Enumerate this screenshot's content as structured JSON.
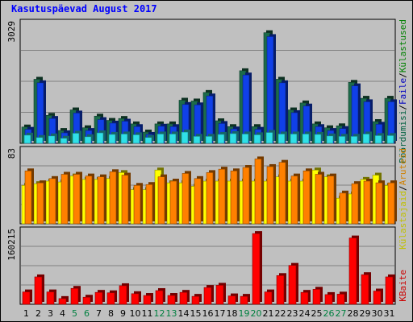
{
  "page": {
    "title": "Kasutuspäevad August 2017"
  },
  "legend": {
    "top_right": [
      {
        "label": "Pöördumisi",
        "color": "#006040"
      },
      {
        "label": "/",
        "color": "#000000"
      },
      {
        "label": "Faile",
        "color": "#0000c0"
      },
      {
        "label": "/",
        "color": "#000000"
      },
      {
        "label": "Külastused",
        "color": "#008000"
      }
    ],
    "middle_right": [
      {
        "label": "Külastajaid",
        "color": "#c0c000"
      },
      {
        "label": "/",
        "color": "#000000"
      },
      {
        "label": "Aruteid",
        "color": "#d08000"
      }
    ],
    "bottom_right": [
      {
        "label": "KBaite",
        "color": "#cc0000"
      }
    ]
  },
  "chart_data": [
    {
      "type": "bar",
      "panel": "top",
      "ymax_label": "3029",
      "ylim": [
        0,
        3029
      ],
      "categories": [
        "1",
        "2",
        "3",
        "4",
        "5",
        "6",
        "7",
        "8",
        "9",
        "10",
        "11",
        "12",
        "13",
        "14",
        "15",
        "16",
        "17",
        "18",
        "19",
        "20",
        "21",
        "22",
        "23",
        "24",
        "25",
        "26",
        "27",
        "28",
        "29",
        "30",
        "31"
      ],
      "weekend_days": [
        "5",
        "6",
        "12",
        "13",
        "19",
        "20",
        "26",
        "27"
      ],
      "series": [
        {
          "name": "Pöördumisi",
          "color": "#1c6b4a",
          "values": [
            420,
            1650,
            720,
            330,
            860,
            400,
            700,
            590,
            640,
            500,
            290,
            500,
            500,
            1110,
            1090,
            1310,
            580,
            430,
            1870,
            430,
            2850,
            1650,
            860,
            1040,
            500,
            400,
            450,
            1570,
            1160,
            560,
            1160
          ]
        },
        {
          "name": "Faile",
          "color": "#1040e8",
          "values": [
            360,
            1560,
            640,
            270,
            780,
            330,
            610,
            520,
            570,
            430,
            230,
            440,
            430,
            1000,
            990,
            1220,
            510,
            370,
            1760,
            360,
            2750,
            1560,
            790,
            960,
            430,
            330,
            380,
            1480,
            1070,
            490,
            1070
          ]
        },
        {
          "name": "Külastused",
          "color": "#30e0e8",
          "values": [
            210,
            150,
            190,
            130,
            260,
            170,
            270,
            230,
            240,
            220,
            150,
            240,
            240,
            290,
            180,
            180,
            230,
            250,
            240,
            220,
            280,
            240,
            240,
            240,
            230,
            190,
            180,
            180,
            240,
            200,
            200
          ]
        }
      ]
    },
    {
      "type": "bar",
      "panel": "middle",
      "ymax_label": "83",
      "ylim": [
        0,
        83
      ],
      "series": [
        {
          "name": "Külastajaid",
          "color": "#ffff00",
          "values": [
            45,
            47,
            50,
            49,
            56,
            52,
            52,
            53,
            60,
            40,
            40,
            63,
            48,
            48,
            44,
            50,
            50,
            50,
            50,
            50,
            50,
            55,
            50,
            50,
            63,
            55,
            30,
            35,
            52,
            57,
            45
          ]
        },
        {
          "name": "Aruteid",
          "color": "#ff8000",
          "values": [
            62,
            48,
            53,
            58,
            58,
            56,
            55,
            61,
            57,
            45,
            46,
            55,
            50,
            59,
            53,
            60,
            64,
            62,
            66,
            76,
            67,
            72,
            56,
            62,
            58,
            56,
            36,
            47,
            50,
            48,
            48
          ]
        }
      ]
    },
    {
      "type": "bar",
      "panel": "bottom",
      "ymax_label": "160215",
      "ylim": [
        0,
        160215
      ],
      "series": [
        {
          "name": "KBaite",
          "color": "#ff0000",
          "values": [
            28000,
            62000,
            28000,
            13000,
            36000,
            16000,
            27000,
            26000,
            42000,
            24000,
            20000,
            31000,
            20000,
            27000,
            18000,
            38000,
            43000,
            19000,
            18000,
            160000,
            28000,
            65000,
            88000,
            27000,
            34000,
            22000,
            23000,
            150000,
            67000,
            30000,
            62000
          ]
        }
      ]
    }
  ]
}
